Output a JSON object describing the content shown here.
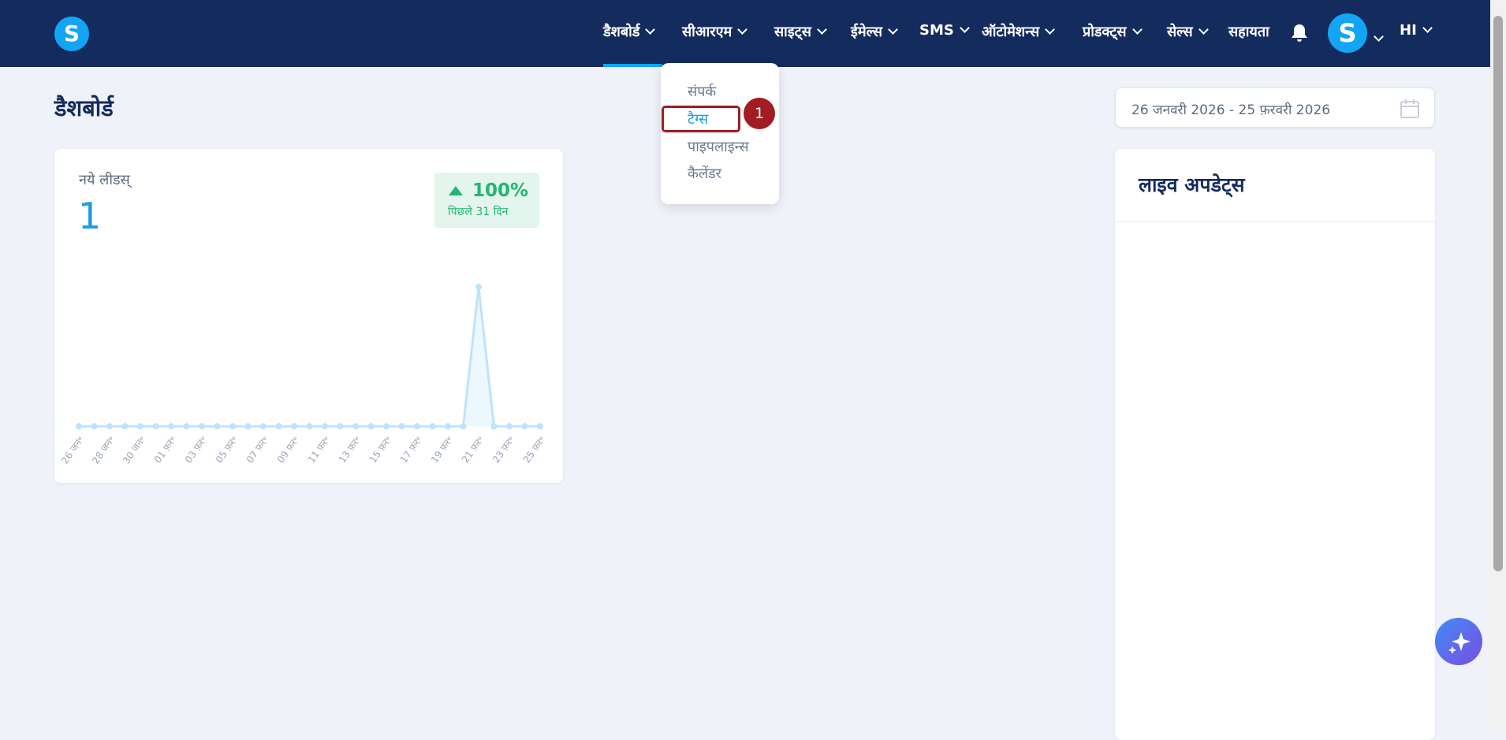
{
  "nav": {
    "items": [
      "डैशबोर्ड",
      "सीआरएम",
      "साइट्स",
      "ईमेल्स",
      "SMS",
      "ऑटोमेशन्स",
      "प्रोडक्ट्स",
      "सेल्स",
      "सहायता"
    ],
    "avatar": "S",
    "user": "HI"
  },
  "dropdown": {
    "items": [
      "संपर्क",
      "टैग्स",
      "पाइपलाइन्स",
      "कैलेंडर"
    ],
    "step": "1"
  },
  "page_title": "डैशबोर्ड",
  "date_range": "26 जनवरी 2026 - 25 फ़रवरी 2026",
  "kpi": {
    "label": "नये लीडस्",
    "value": "1",
    "change": "100%",
    "period": "पिछले 31 दिन"
  },
  "live_updates": {
    "title": "लाइव अपडेट्स"
  },
  "chart_data": {
    "type": "line",
    "categories": [
      "26 जन॰",
      null,
      "28 जन॰",
      null,
      "30 जन॰",
      null,
      "01 फ़र॰",
      null,
      "03 फ़र॰",
      null,
      "05 फ़र॰",
      null,
      "07 फ़र॰",
      null,
      "09 फ़र॰",
      null,
      "11 फ़र॰",
      null,
      "13 फ़र॰",
      null,
      "15 फ़र॰",
      null,
      "17 फ़र॰",
      null,
      "19 फ़र॰",
      null,
      "21 फ़र॰",
      null,
      "23 फ़र॰",
      null,
      "25 फ़र॰"
    ],
    "values": [
      0,
      0,
      0,
      0,
      0,
      0,
      0,
      0,
      0,
      0,
      0,
      0,
      0,
      0,
      0,
      0,
      0,
      0,
      0,
      0,
      0,
      0,
      0,
      0,
      0,
      0,
      1,
      0,
      0,
      0,
      0
    ],
    "color": "#bfe3fb",
    "ylim": [
      0,
      1
    ]
  }
}
